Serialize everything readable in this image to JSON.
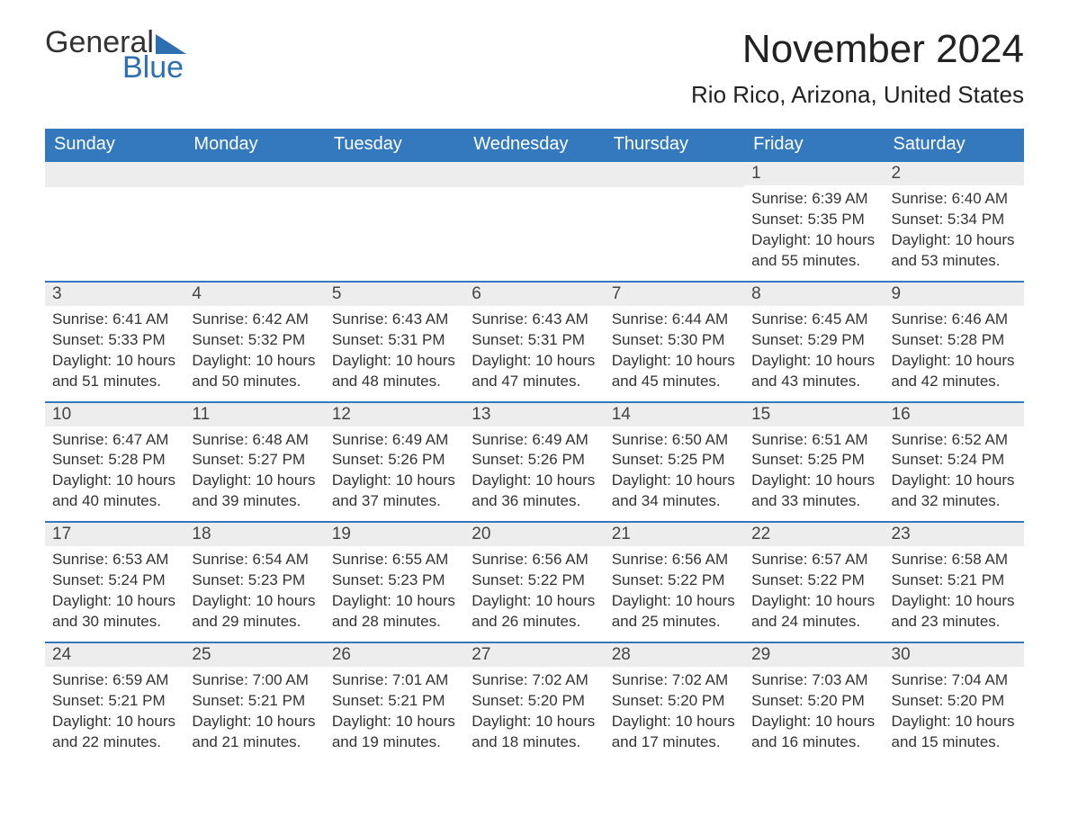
{
  "brand": {
    "word1": "General",
    "word2": "Blue"
  },
  "title": "November 2024",
  "location": "Rio Rico, Arizona, United States",
  "colors": {
    "header_bg": "#3478bd",
    "header_text": "#ffffff",
    "daynum_bg": "#ededed",
    "text": "#333333",
    "accent": "#2d6fb3",
    "page_bg": "#ffffff"
  },
  "layout": {
    "columns": 7,
    "rows": 5,
    "month_title_fontsize": 44,
    "location_fontsize": 26,
    "weekday_fontsize": 20,
    "body_fontsize": 17
  },
  "weekdays": [
    "Sunday",
    "Monday",
    "Tuesday",
    "Wednesday",
    "Thursday",
    "Friday",
    "Saturday"
  ],
  "weeks": [
    [
      {
        "blank": true
      },
      {
        "blank": true
      },
      {
        "blank": true
      },
      {
        "blank": true
      },
      {
        "blank": true
      },
      {
        "day": "1",
        "sunrise": "Sunrise: 6:39 AM",
        "sunset": "Sunset: 5:35 PM",
        "daylight": "Daylight: 10 hours and 55 minutes."
      },
      {
        "day": "2",
        "sunrise": "Sunrise: 6:40 AM",
        "sunset": "Sunset: 5:34 PM",
        "daylight": "Daylight: 10 hours and 53 minutes."
      }
    ],
    [
      {
        "day": "3",
        "sunrise": "Sunrise: 6:41 AM",
        "sunset": "Sunset: 5:33 PM",
        "daylight": "Daylight: 10 hours and 51 minutes."
      },
      {
        "day": "4",
        "sunrise": "Sunrise: 6:42 AM",
        "sunset": "Sunset: 5:32 PM",
        "daylight": "Daylight: 10 hours and 50 minutes."
      },
      {
        "day": "5",
        "sunrise": "Sunrise: 6:43 AM",
        "sunset": "Sunset: 5:31 PM",
        "daylight": "Daylight: 10 hours and 48 minutes."
      },
      {
        "day": "6",
        "sunrise": "Sunrise: 6:43 AM",
        "sunset": "Sunset: 5:31 PM",
        "daylight": "Daylight: 10 hours and 47 minutes."
      },
      {
        "day": "7",
        "sunrise": "Sunrise: 6:44 AM",
        "sunset": "Sunset: 5:30 PM",
        "daylight": "Daylight: 10 hours and 45 minutes."
      },
      {
        "day": "8",
        "sunrise": "Sunrise: 6:45 AM",
        "sunset": "Sunset: 5:29 PM",
        "daylight": "Daylight: 10 hours and 43 minutes."
      },
      {
        "day": "9",
        "sunrise": "Sunrise: 6:46 AM",
        "sunset": "Sunset: 5:28 PM",
        "daylight": "Daylight: 10 hours and 42 minutes."
      }
    ],
    [
      {
        "day": "10",
        "sunrise": "Sunrise: 6:47 AM",
        "sunset": "Sunset: 5:28 PM",
        "daylight": "Daylight: 10 hours and 40 minutes."
      },
      {
        "day": "11",
        "sunrise": "Sunrise: 6:48 AM",
        "sunset": "Sunset: 5:27 PM",
        "daylight": "Daylight: 10 hours and 39 minutes."
      },
      {
        "day": "12",
        "sunrise": "Sunrise: 6:49 AM",
        "sunset": "Sunset: 5:26 PM",
        "daylight": "Daylight: 10 hours and 37 minutes."
      },
      {
        "day": "13",
        "sunrise": "Sunrise: 6:49 AM",
        "sunset": "Sunset: 5:26 PM",
        "daylight": "Daylight: 10 hours and 36 minutes."
      },
      {
        "day": "14",
        "sunrise": "Sunrise: 6:50 AM",
        "sunset": "Sunset: 5:25 PM",
        "daylight": "Daylight: 10 hours and 34 minutes."
      },
      {
        "day": "15",
        "sunrise": "Sunrise: 6:51 AM",
        "sunset": "Sunset: 5:25 PM",
        "daylight": "Daylight: 10 hours and 33 minutes."
      },
      {
        "day": "16",
        "sunrise": "Sunrise: 6:52 AM",
        "sunset": "Sunset: 5:24 PM",
        "daylight": "Daylight: 10 hours and 32 minutes."
      }
    ],
    [
      {
        "day": "17",
        "sunrise": "Sunrise: 6:53 AM",
        "sunset": "Sunset: 5:24 PM",
        "daylight": "Daylight: 10 hours and 30 minutes."
      },
      {
        "day": "18",
        "sunrise": "Sunrise: 6:54 AM",
        "sunset": "Sunset: 5:23 PM",
        "daylight": "Daylight: 10 hours and 29 minutes."
      },
      {
        "day": "19",
        "sunrise": "Sunrise: 6:55 AM",
        "sunset": "Sunset: 5:23 PM",
        "daylight": "Daylight: 10 hours and 28 minutes."
      },
      {
        "day": "20",
        "sunrise": "Sunrise: 6:56 AM",
        "sunset": "Sunset: 5:22 PM",
        "daylight": "Daylight: 10 hours and 26 minutes."
      },
      {
        "day": "21",
        "sunrise": "Sunrise: 6:56 AM",
        "sunset": "Sunset: 5:22 PM",
        "daylight": "Daylight: 10 hours and 25 minutes."
      },
      {
        "day": "22",
        "sunrise": "Sunrise: 6:57 AM",
        "sunset": "Sunset: 5:22 PM",
        "daylight": "Daylight: 10 hours and 24 minutes."
      },
      {
        "day": "23",
        "sunrise": "Sunrise: 6:58 AM",
        "sunset": "Sunset: 5:21 PM",
        "daylight": "Daylight: 10 hours and 23 minutes."
      }
    ],
    [
      {
        "day": "24",
        "sunrise": "Sunrise: 6:59 AM",
        "sunset": "Sunset: 5:21 PM",
        "daylight": "Daylight: 10 hours and 22 minutes."
      },
      {
        "day": "25",
        "sunrise": "Sunrise: 7:00 AM",
        "sunset": "Sunset: 5:21 PM",
        "daylight": "Daylight: 10 hours and 21 minutes."
      },
      {
        "day": "26",
        "sunrise": "Sunrise: 7:01 AM",
        "sunset": "Sunset: 5:21 PM",
        "daylight": "Daylight: 10 hours and 19 minutes."
      },
      {
        "day": "27",
        "sunrise": "Sunrise: 7:02 AM",
        "sunset": "Sunset: 5:20 PM",
        "daylight": "Daylight: 10 hours and 18 minutes."
      },
      {
        "day": "28",
        "sunrise": "Sunrise: 7:02 AM",
        "sunset": "Sunset: 5:20 PM",
        "daylight": "Daylight: 10 hours and 17 minutes."
      },
      {
        "day": "29",
        "sunrise": "Sunrise: 7:03 AM",
        "sunset": "Sunset: 5:20 PM",
        "daylight": "Daylight: 10 hours and 16 minutes."
      },
      {
        "day": "30",
        "sunrise": "Sunrise: 7:04 AM",
        "sunset": "Sunset: 5:20 PM",
        "daylight": "Daylight: 10 hours and 15 minutes."
      }
    ]
  ]
}
